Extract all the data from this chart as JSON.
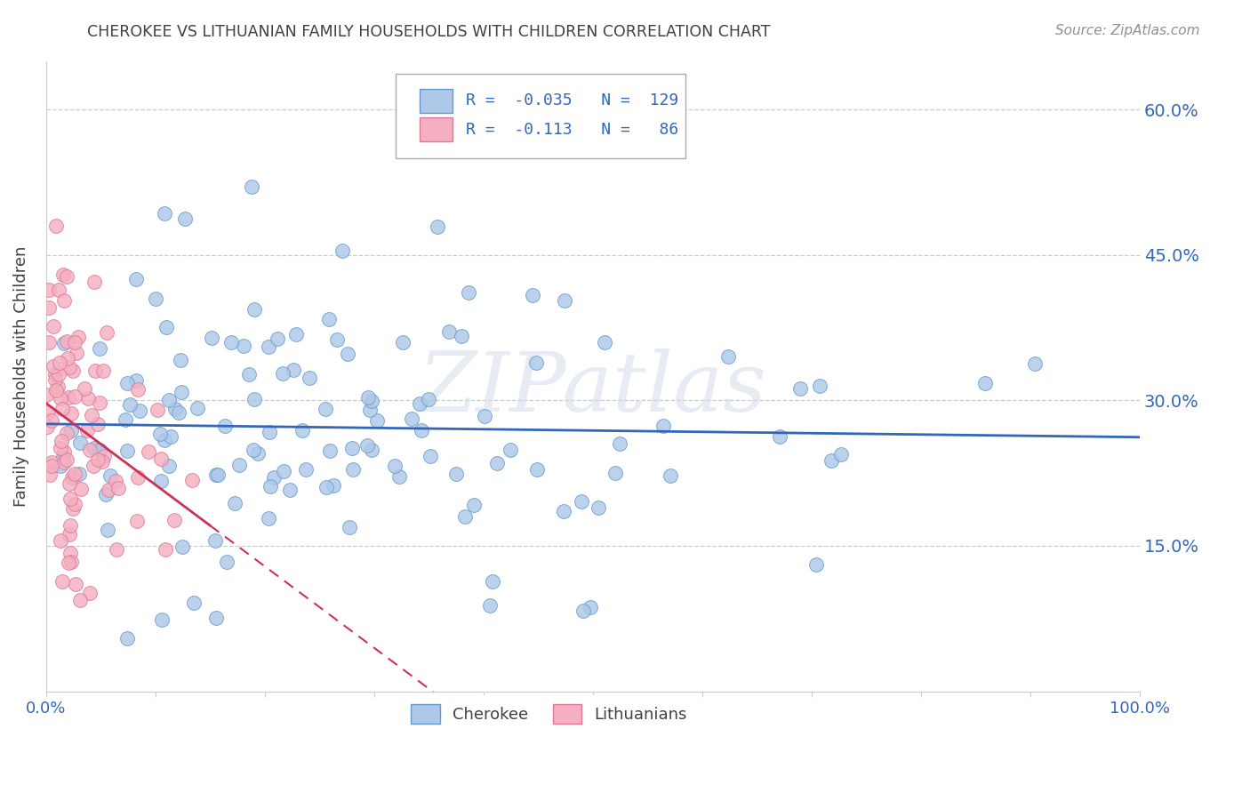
{
  "title": "CHEROKEE VS LITHUANIAN FAMILY HOUSEHOLDS WITH CHILDREN CORRELATION CHART",
  "source": "Source: ZipAtlas.com",
  "ylabel": "Family Households with Children",
  "xlim": [
    0.0,
    1.0
  ],
  "ylim": [
    0.0,
    0.65
  ],
  "xticks": [
    0.0,
    0.1,
    0.2,
    0.3,
    0.4,
    0.5,
    0.6,
    0.7,
    0.8,
    0.9,
    1.0
  ],
  "xtick_labels": [
    "0.0%",
    "",
    "",
    "",
    "",
    "",
    "",
    "",
    "",
    "",
    "100.0%"
  ],
  "ytick_values": [
    0.15,
    0.3,
    0.45,
    0.6
  ],
  "ytick_labels": [
    "15.0%",
    "30.0%",
    "45.0%",
    "60.0%"
  ],
  "cherokee_color": "#adc8e8",
  "lithuanian_color": "#f4afc0",
  "cherokee_edge": "#6699cc",
  "lithuanian_edge": "#dd7799",
  "regression_cherokee_color": "#3366bb",
  "regression_lithuanian_color": "#cc3355",
  "legend_R1": "-0.035",
  "legend_N1": "129",
  "legend_R2": "-0.113",
  "legend_N2": "86",
  "watermark": "ZIPatlas",
  "background_color": "#ffffff",
  "grid_color": "#cccccc",
  "title_color": "#404040"
}
